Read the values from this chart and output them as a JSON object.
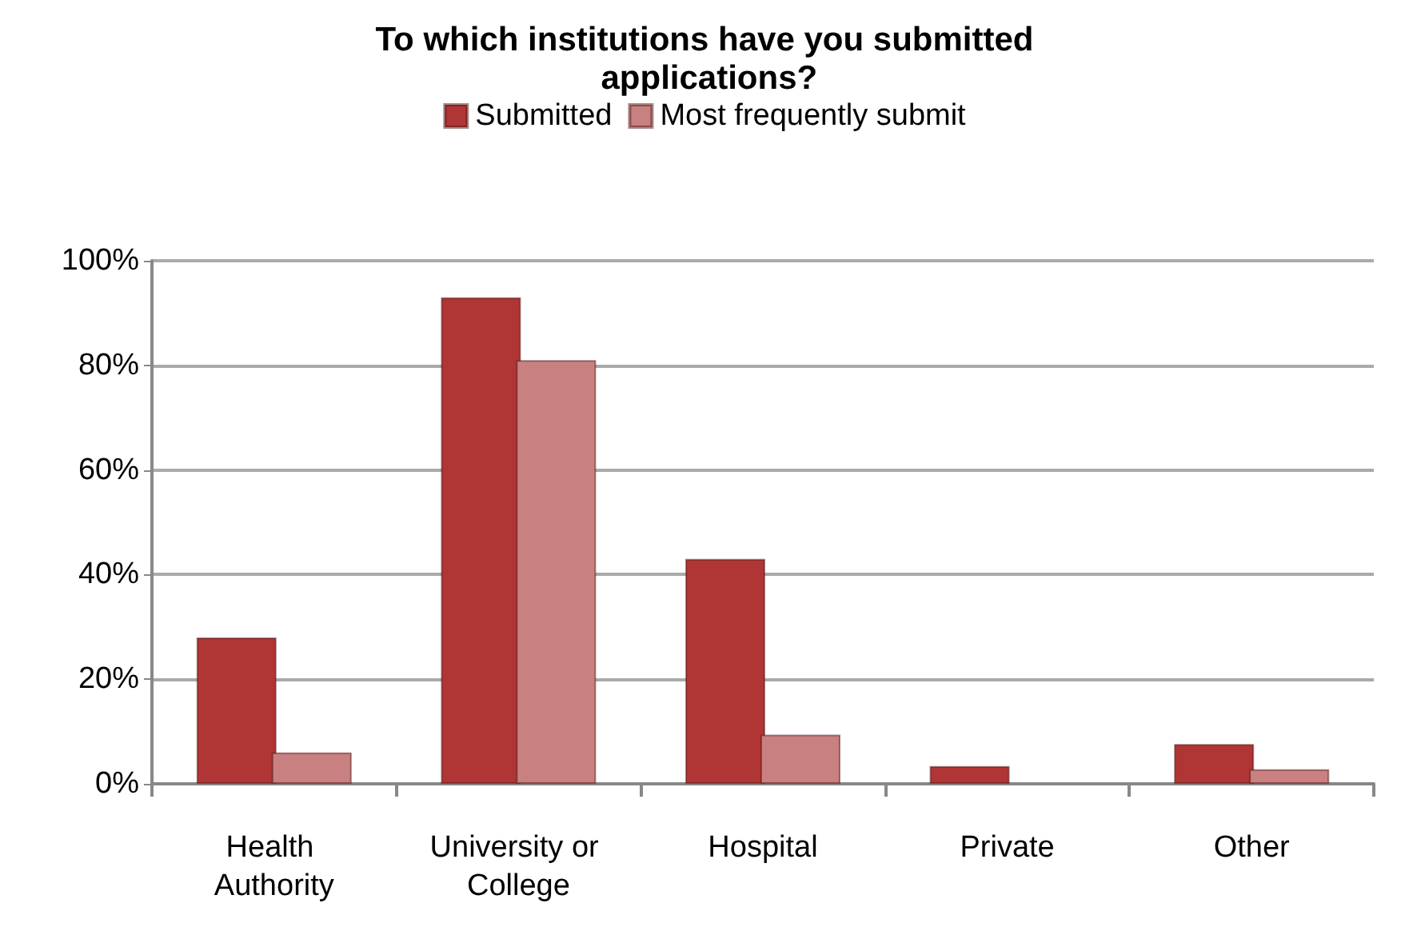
{
  "chart_data": {
    "type": "bar",
    "title": "To which institutions have you submitted applications?",
    "categories": [
      "Health Authority",
      "University or College",
      "Hospital",
      "Private",
      "Other"
    ],
    "series": [
      {
        "name": "Submitted",
        "color": "#b03535",
        "values": [
          28,
          93,
          43,
          3.4,
          7.6
        ]
      },
      {
        "name": "Most frequently submit",
        "color": "#c98080",
        "values": [
          6,
          81,
          9.4,
          null,
          2.8
        ]
      }
    ],
    "ylim": [
      0,
      100
    ],
    "yticks": [
      {
        "value": 0,
        "label": "0%"
      },
      {
        "value": 20,
        "label": "20%"
      },
      {
        "value": 40,
        "label": "40%"
      },
      {
        "value": 60,
        "label": "60%"
      },
      {
        "value": 80,
        "label": "80%"
      },
      {
        "value": 100,
        "label": "100%"
      }
    ],
    "grid": "y",
    "legend": "top"
  }
}
